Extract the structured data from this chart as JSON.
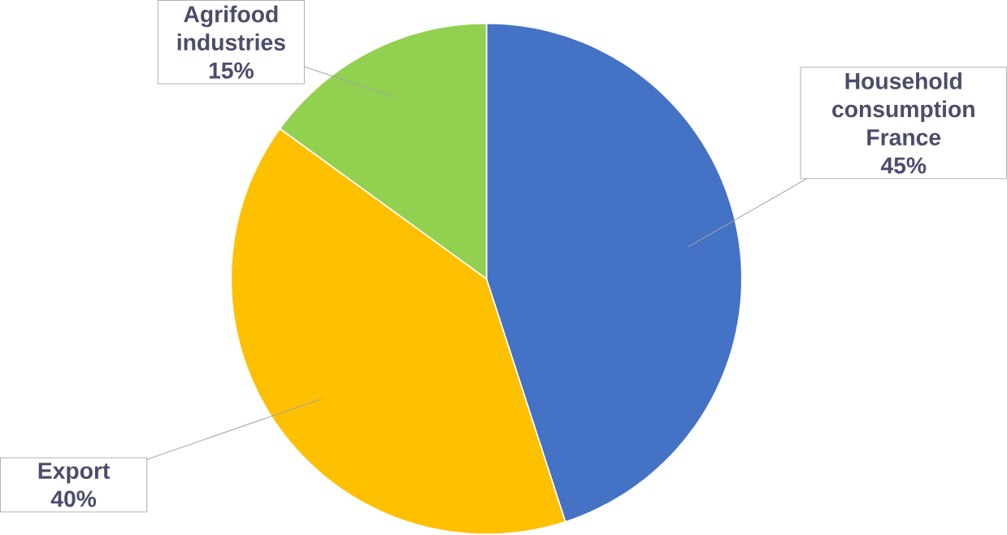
{
  "chart_data": {
    "type": "pie",
    "categories": [
      "Household consumption France",
      "Export",
      "Agrifood industries"
    ],
    "values": [
      45,
      40,
      15
    ],
    "value_labels": [
      "45%",
      "40%",
      "15%"
    ],
    "colors": [
      "#4472c4",
      "#ffc000",
      "#92d050"
    ]
  }
}
